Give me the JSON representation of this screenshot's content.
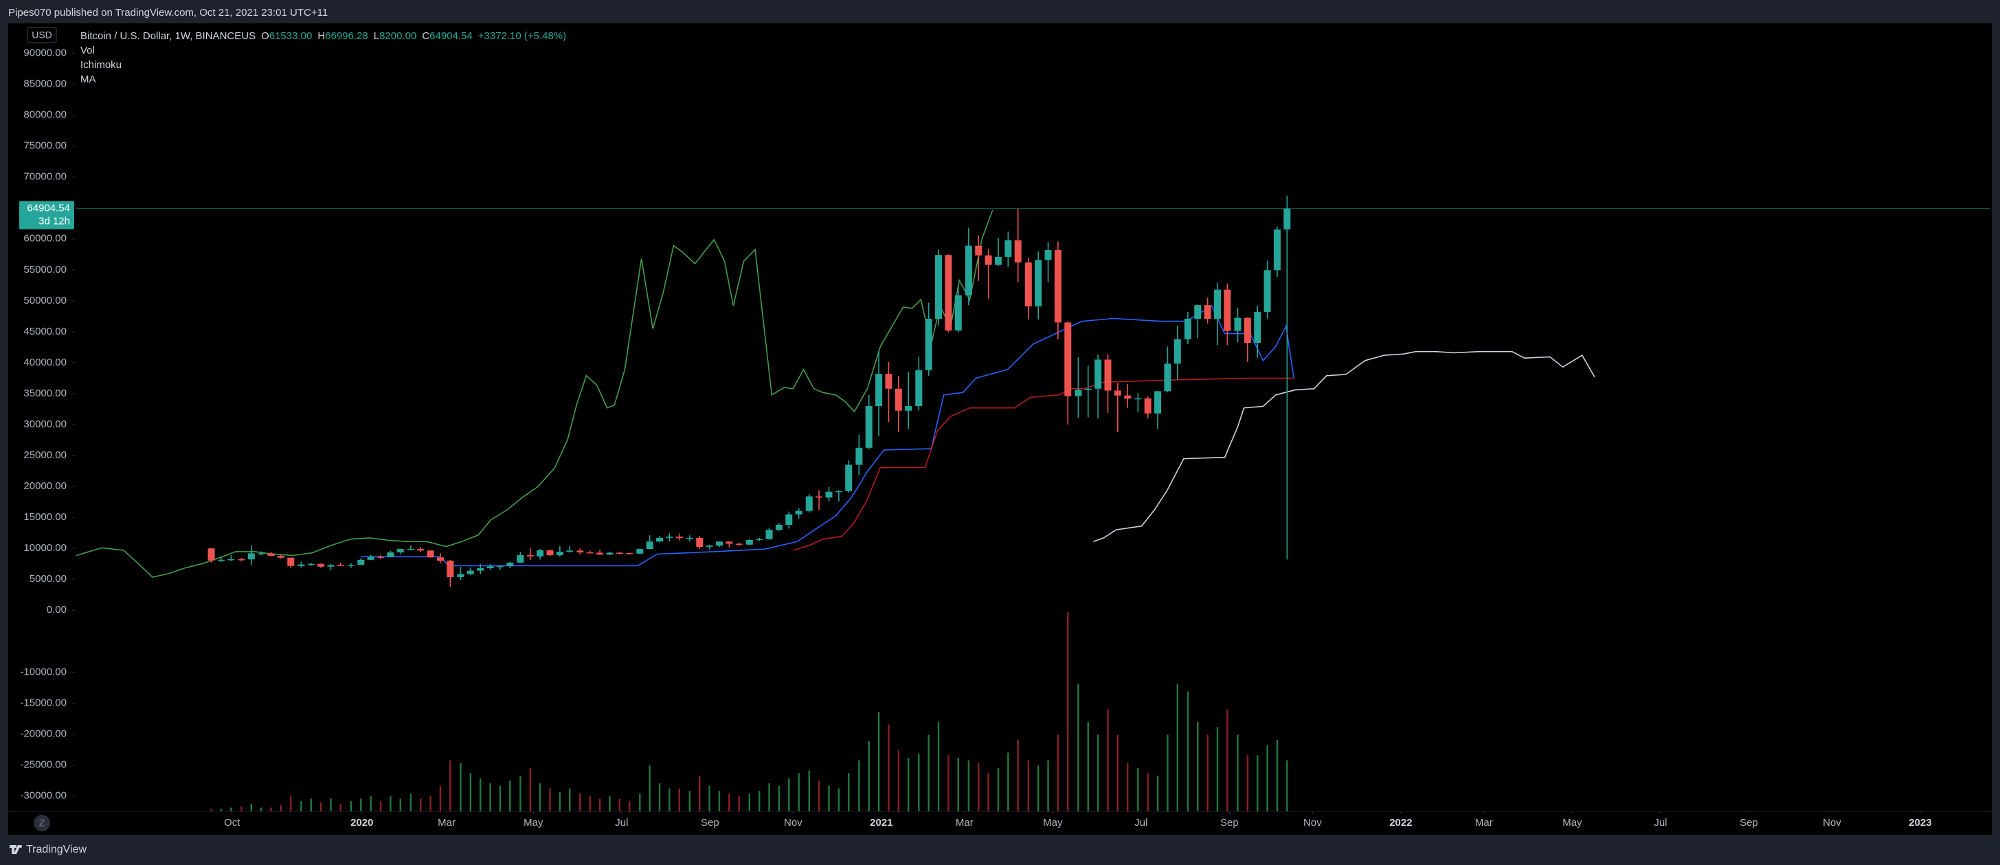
{
  "header": {
    "text": "Pipes070 published on TradingView.com, Oct 21, 2021 23:01 UTC+11"
  },
  "footer": {
    "brand": "TradingView"
  },
  "scale_button": "Z",
  "chart_data": {
    "type": "candlestick",
    "title": "Bitcoin / U.S. Dollar, 1W, BINANCEUS",
    "ohlc_legend": [
      {
        "key": "O",
        "value": "61533.00"
      },
      {
        "key": "H",
        "value": "66996.28"
      },
      {
        "key": "L",
        "value": "8200.00"
      },
      {
        "key": "C",
        "value": "64904.54"
      }
    ],
    "change": "+3372.10 (+5.48%)",
    "indicators": [
      "Vol",
      "Ichimoku",
      "MA"
    ],
    "currency": "USD",
    "up_color": "#26a69a",
    "down_color": "#ef5350",
    "volume_up_color": "#1f7a3d",
    "volume_down_color": "#8e1f22",
    "x": [
      2019.71,
      2019.729,
      2019.748,
      2019.768,
      2019.787,
      2019.806,
      2019.825,
      2019.844,
      2019.863,
      2019.883,
      2019.902,
      2019.921,
      2019.94,
      2019.959,
      2019.979,
      2019.998,
      2020.017,
      2020.036,
      2020.055,
      2020.074,
      2020.094,
      2020.113,
      2020.132,
      2020.151,
      2020.17,
      2020.19,
      2020.209,
      2020.228,
      2020.247,
      2020.266,
      2020.285,
      2020.305,
      2020.324,
      2020.343,
      2020.362,
      2020.381,
      2020.4,
      2020.42,
      2020.439,
      2020.458,
      2020.477,
      2020.496,
      2020.515,
      2020.535,
      2020.554,
      2020.573,
      2020.592,
      2020.611,
      2020.631,
      2020.65,
      2020.669,
      2020.688,
      2020.707,
      2020.726,
      2020.746,
      2020.765,
      2020.784,
      2020.803,
      2020.822,
      2020.841,
      2020.861,
      2020.88,
      2020.899,
      2020.918,
      2020.937,
      2020.957,
      2020.976,
      2020.995,
      2021.014,
      2021.033,
      2021.052,
      2021.072,
      2021.091,
      2021.11,
      2021.129,
      2021.148,
      2021.168,
      2021.187,
      2021.206,
      2021.225,
      2021.244,
      2021.263,
      2021.283,
      2021.302,
      2021.321,
      2021.34,
      2021.359,
      2021.379,
      2021.398,
      2021.417,
      2021.436,
      2021.455,
      2021.474,
      2021.494,
      2021.513,
      2021.532,
      2021.551,
      2021.57,
      2021.59,
      2021.609,
      2021.628,
      2021.647,
      2021.666,
      2021.686,
      2021.705,
      2021.724,
      2021.743,
      2021.762,
      2021.781
    ],
    "open": [
      10000,
      8050,
      8150,
      8250,
      8220,
      9200,
      9200,
      8800,
      8500,
      7150,
      7400,
      7500,
      7050,
      7300,
      7250,
      7350,
      8150,
      8650,
      8600,
      9350,
      9900,
      9900,
      9650,
      8550,
      8000,
      5350,
      5850,
      6400,
      6800,
      7100,
      7150,
      7700,
      8900,
      8700,
      9700,
      8900,
      9450,
      9650,
      9350,
      9300,
      9000,
      9300,
      9250,
      9150,
      9900,
      11100,
      11700,
      11900,
      11650,
      11700,
      10250,
      10450,
      11100,
      10750,
      10600,
      11350,
      11500,
      13000,
      13800,
      15500,
      16050,
      18400,
      18200,
      19150,
      19250,
      23500,
      26250,
      33000,
      38200,
      35800,
      32250,
      33000,
      38800,
      47100,
      57400,
      45200,
      50900,
      58900,
      57350,
      55800,
      57100,
      59800,
      56200,
      49100,
      56600,
      58200,
      46500,
      34600,
      35600,
      35800,
      40500,
      35500,
      34700,
      34200,
      34250,
      31800,
      35400,
      39850,
      43800,
      47100,
      49300,
      47100,
      51800,
      45150,
      47250,
      43200,
      48200,
      54950,
      61533
    ],
    "high": [
      10050,
      8500,
      8900,
      8450,
      10500,
      9500,
      9450,
      8900,
      8500,
      7850,
      7700,
      7550,
      7500,
      7700,
      7600,
      8450,
      9000,
      8900,
      9600,
      9900,
      10500,
      10250,
      9700,
      9200,
      8150,
      7000,
      6900,
      7450,
      7450,
      7250,
      7800,
      9450,
      10000,
      9900,
      9850,
      10400,
      10400,
      10000,
      9650,
      9750,
      9450,
      9450,
      9300,
      10000,
      12100,
      12000,
      12450,
      12400,
      12100,
      12050,
      10600,
      11150,
      11100,
      10950,
      11500,
      11700,
      13350,
      14100,
      15950,
      16500,
      18800,
      19400,
      19900,
      19400,
      24200,
      28400,
      34800,
      41950,
      40100,
      37850,
      38550,
      40950,
      49700,
      58350,
      57500,
      52500,
      61800,
      60600,
      58400,
      60200,
      61200,
      64900,
      57000,
      57950,
      59500,
      59600,
      46700,
      40900,
      39500,
      41300,
      41350,
      36700,
      36600,
      35100,
      34600,
      35400,
      42600,
      46000,
      48200,
      49400,
      50500,
      52900,
      52800,
      48850,
      47350,
      49200,
      56500,
      62000,
      66996.28
    ],
    "low": [
      7700,
      7800,
      7950,
      7900,
      7300,
      8900,
      8700,
      8350,
      6800,
      6850,
      7200,
      6850,
      6450,
      7150,
      6850,
      7300,
      8100,
      8250,
      8550,
      9100,
      9700,
      9400,
      8500,
      7600,
      3800,
      4900,
      5700,
      5850,
      6500,
      6500,
      6800,
      7650,
      8100,
      8200,
      8800,
      8650,
      9300,
      9100,
      9200,
      8950,
      8900,
      9050,
      9000,
      9100,
      9850,
      11000,
      11100,
      11300,
      11100,
      9900,
      9850,
      10200,
      10150,
      10400,
      10550,
      11200,
      11400,
      12800,
      13200,
      14800,
      15800,
      16200,
      17600,
      17600,
      19000,
      21800,
      26000,
      28100,
      30400,
      28800,
      29250,
      32300,
      37900,
      46000,
      44900,
      44950,
      49300,
      53250,
      50350,
      55600,
      55450,
      53000,
      47000,
      47000,
      53000,
      43800,
      30000,
      31100,
      31200,
      31000,
      31900,
      28800,
      32700,
      32000,
      31000,
      29300,
      35200,
      37300,
      43000,
      43950,
      46350,
      42850,
      42850,
      43300,
      40150,
      40800,
      47100,
      53900,
      8200
    ],
    "close": [
      8050,
      8150,
      8250,
      8220,
      9200,
      9200,
      8800,
      8500,
      7150,
      7400,
      7500,
      7050,
      7300,
      7250,
      7350,
      8150,
      8650,
      8600,
      9350,
      9900,
      9900,
      9650,
      8550,
      8000,
      5350,
      5850,
      6400,
      6800,
      7100,
      7150,
      7700,
      8900,
      8700,
      9700,
      8900,
      9450,
      9650,
      9350,
      9300,
      9000,
      9300,
      9250,
      9150,
      9900,
      11100,
      11700,
      11900,
      11650,
      11700,
      10250,
      10450,
      11100,
      10750,
      10600,
      11350,
      11500,
      13000,
      13800,
      15500,
      16050,
      18400,
      18200,
      19150,
      19250,
      23500,
      26250,
      33000,
      38200,
      35800,
      32250,
      33000,
      38800,
      47100,
      57400,
      45200,
      50900,
      58900,
      57350,
      55800,
      57100,
      59800,
      56200,
      49100,
      56600,
      58200,
      46500,
      34600,
      35600,
      35800,
      40500,
      35500,
      34700,
      34200,
      34250,
      31800,
      35400,
      39850,
      43800,
      47100,
      49300,
      47100,
      51800,
      45150,
      47250,
      43200,
      48200,
      54950,
      61533,
      64904.54
    ],
    "volume": [
      2,
      2,
      3,
      4,
      6,
      3,
      3,
      5,
      12,
      8,
      10,
      7,
      10,
      6,
      8,
      10,
      12,
      8,
      12,
      10,
      14,
      10,
      12,
      20,
      40,
      38,
      30,
      26,
      22,
      20,
      24,
      28,
      34,
      22,
      18,
      15,
      18,
      14,
      12,
      10,
      12,
      10,
      8,
      14,
      36,
      22,
      18,
      18,
      16,
      28,
      20,
      16,
      14,
      12,
      14,
      16,
      22,
      20,
      26,
      30,
      32,
      24,
      20,
      18,
      30,
      40,
      55,
      78,
      68,
      48,
      42,
      45,
      60,
      70,
      44,
      42,
      40,
      38,
      30,
      34,
      46,
      56,
      40,
      36,
      40,
      60,
      156,
      100,
      70,
      60,
      80,
      60,
      38,
      34,
      30,
      28,
      60,
      100,
      94,
      70,
      60,
      66,
      80,
      60,
      44,
      44,
      52,
      56,
      40
    ],
    "lines": [
      {
        "color": "#43a047",
        "x": [
          2019.45,
          2019.499,
          2019.541,
          2019.568,
          2019.597,
          2019.629,
          2019.658,
          2019.695,
          2019.725,
          2019.757,
          2019.794,
          2019.83,
          2019.867,
          2019.904,
          2019.941,
          2019.978,
          2020.015,
          2020.052,
          2020.088,
          2020.125,
          2020.162,
          2020.192,
          2020.224,
          2020.248,
          2020.28,
          2020.31,
          2020.339,
          2020.371,
          2020.396,
          2020.413,
          2020.432,
          2020.452,
          2020.472,
          2020.486,
          2020.506,
          2020.538,
          2020.56,
          2020.58,
          2020.6,
          2020.617,
          2020.641,
          2020.678,
          2020.698,
          2020.715,
          2020.735,
          2020.757,
          2020.789,
          2020.813,
          2020.83,
          2020.85,
          2020.87,
          2020.887,
          2020.912,
          2020.929,
          2020.948,
          2020.973,
          2020.998,
          2021.022,
          2021.042,
          2021.059,
          2021.076,
          2021.096,
          2021.113,
          2021.133,
          2021.15,
          2021.17,
          2021.194,
          2021.214
        ],
        "values": [
          8850,
          10100,
          9700,
          7650,
          5350,
          5970,
          6800,
          7600,
          8450,
          9470,
          9470,
          9060,
          8850,
          9270,
          10500,
          11500,
          11700,
          11300,
          11100,
          11100,
          10300,
          11100,
          12150,
          14600,
          16250,
          18300,
          20000,
          23000,
          27600,
          33150,
          37900,
          36400,
          32700,
          33150,
          38900,
          56800,
          45500,
          51300,
          58900,
          57900,
          56000,
          59900,
          56400,
          49200,
          56400,
          58300,
          34800,
          36000,
          35800,
          38900,
          35800,
          35200,
          34800,
          33800,
          32100,
          35800,
          42600,
          46100,
          49000,
          48800,
          50200,
          43000,
          49200,
          45700,
          53300,
          50200,
          60100,
          64650
        ]
      },
      {
        "color": "#2962ff",
        "x": [
          2019.998,
          2020.15,
          2020.167,
          2020.531,
          2020.568,
          2020.678,
          2020.776,
          2020.838,
          2020.875,
          2020.912,
          2020.943,
          2020.973,
          2021.005,
          2021.096,
          2021.12,
          2021.157,
          2021.182,
          2021.243,
          2021.292,
          2021.386,
          2021.447,
          2021.538,
          2021.587,
          2021.636,
          2021.661,
          2021.71,
          2021.735,
          2021.759,
          2021.779,
          2021.794
        ],
        "values": [
          8650,
          8650,
          7200,
          7200,
          9060,
          9470,
          9880,
          11100,
          13200,
          15250,
          18300,
          22400,
          25900,
          26100,
          34800,
          35200,
          37500,
          38900,
          43000,
          46700,
          47150,
          46700,
          46700,
          49200,
          44700,
          44700,
          40350,
          42600,
          45900,
          37500
        ]
      },
      {
        "color": "#b71c1c",
        "x": [
          2020.83,
          2020.862,
          2020.887,
          2020.924,
          2020.948,
          2020.973,
          2020.998,
          2021.084,
          2021.108,
          2021.133,
          2021.17,
          2021.256,
          2021.287,
          2021.342,
          2021.366,
          2021.391,
          2021.428,
          2021.575,
          2021.71,
          2021.794
        ],
        "values": [
          9680,
          10500,
          11500,
          11950,
          14200,
          17900,
          23050,
          23050,
          29000,
          31300,
          32700,
          32700,
          34400,
          34800,
          35800,
          35800,
          36850,
          37250,
          37500,
          37500
        ]
      },
      {
        "color": "#d1d4dc",
        "x": [
          2021.408,
          2021.428,
          2021.452,
          2021.501,
          2021.526,
          2021.55,
          2021.582,
          2021.661,
          2021.686,
          2021.698,
          2021.735,
          2021.759,
          2021.796,
          2021.833,
          2021.857,
          2021.894,
          2021.931,
          2021.968,
          2022.005,
          2022.029,
          2022.066,
          2022.103,
          2022.152,
          2022.214,
          2022.238,
          2022.287,
          2022.312,
          2022.349,
          2022.373
        ],
        "values": [
          11100,
          11700,
          13000,
          13600,
          16250,
          19350,
          24500,
          24700,
          29650,
          32700,
          32950,
          34800,
          35600,
          35800,
          37900,
          38100,
          40350,
          41200,
          41400,
          41800,
          41800,
          41600,
          41800,
          41800,
          40750,
          40950,
          39300,
          41200,
          37700
        ]
      }
    ],
    "last_price": {
      "value": 64904.54,
      "label": "64904.54"
    },
    "countdown": "3d 12h",
    "xlim": [
      2019.45,
      2023.135
    ],
    "xticks": [
      {
        "value": 2019.75,
        "label": "Oct"
      },
      2020,
      {
        "value": 2020.163,
        "label": "Mar"
      },
      {
        "value": 2020.33,
        "label": "May"
      },
      {
        "value": 2020.5,
        "label": "Jul"
      },
      {
        "value": 2020.67,
        "label": "Sep"
      },
      {
        "value": 2020.83,
        "label": "Nov"
      },
      2021,
      {
        "value": 2021.16,
        "label": "Mar"
      },
      {
        "value": 2021.33,
        "label": "May"
      },
      {
        "value": 2021.5,
        "label": "Jul"
      },
      {
        "value": 2021.67,
        "label": "Sep"
      },
      {
        "value": 2021.83,
        "label": "Nov"
      },
      2022,
      {
        "value": 2022.16,
        "label": "Mar"
      },
      {
        "value": 2022.33,
        "label": "May"
      },
      {
        "value": 2022.5,
        "label": "Jul"
      },
      {
        "value": 2022.67,
        "label": "Sep"
      },
      {
        "value": 2022.83,
        "label": "Nov"
      },
      2023
    ],
    "ylim": [
      -32500,
      94500
    ],
    "yticks": [
      {
        "value": 90000,
        "label": "90000.00"
      },
      {
        "value": 85000,
        "label": "85000.00"
      },
      {
        "value": 80000,
        "label": "80000.00"
      },
      {
        "value": 75000,
        "label": "75000.00"
      },
      {
        "value": 70000,
        "label": "70000.00"
      },
      {
        "value": 65000,
        "label": "65000.00"
      },
      {
        "value": 60000,
        "label": "60000.00"
      },
      {
        "value": 55000,
        "label": "55000.00"
      },
      {
        "value": 50000,
        "label": "50000.00"
      },
      {
        "value": 45000,
        "label": "45000.00"
      },
      {
        "value": 40000,
        "label": "40000.00"
      },
      {
        "value": 35000,
        "label": "35000.00"
      },
      {
        "value": 30000,
        "label": "30000.00"
      },
      {
        "value": 25000,
        "label": "25000.00"
      },
      {
        "value": 20000,
        "label": "20000.00"
      },
      {
        "value": 15000,
        "label": "15000.00"
      },
      {
        "value": 10000,
        "label": "10000.00"
      },
      {
        "value": 5000,
        "label": "5000.00"
      },
      {
        "value": 0,
        "label": "0.00"
      },
      {
        "value": -10000,
        "label": "-10000.00"
      },
      {
        "value": -15000,
        "label": "-15000.00"
      },
      {
        "value": -20000,
        "label": "-20000.00"
      },
      {
        "value": -25000,
        "label": "-25000.00"
      },
      {
        "value": -30000,
        "label": "-30000.00"
      }
    ]
  }
}
